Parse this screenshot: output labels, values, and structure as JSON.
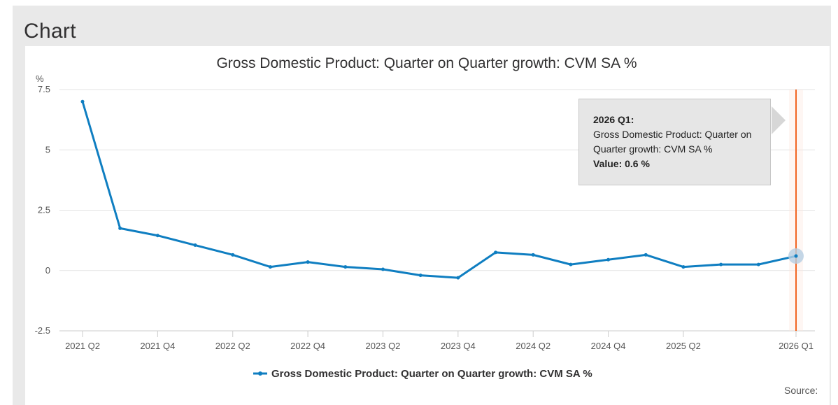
{
  "panel": {
    "title": "Chart"
  },
  "chart_data": {
    "type": "line",
    "title": "Gross Domestic Product: Quarter on Quarter growth: CVM SA %",
    "ylabel": "%",
    "ylim": [
      -2.5,
      7.5
    ],
    "yticks": [
      "7.5",
      "5",
      "2.5",
      "0",
      "-2.5"
    ],
    "ytick_values": [
      7.5,
      5,
      2.5,
      0,
      -2.5
    ],
    "x": [
      "2021 Q2",
      "2021 Q3",
      "2021 Q4",
      "2022 Q1",
      "2022 Q2",
      "2022 Q3",
      "2022 Q4",
      "2023 Q1",
      "2023 Q2",
      "2023 Q3",
      "2023 Q4",
      "2024 Q1",
      "2024 Q2",
      "2024 Q3",
      "2024 Q4",
      "2025 Q1",
      "2025 Q2",
      "2025 Q3",
      "2025 Q4",
      "2026 Q1"
    ],
    "xtick_labels": [
      "2021 Q2",
      "2021 Q4",
      "2022 Q2",
      "2022 Q4",
      "2023 Q2",
      "2023 Q4",
      "2024 Q2",
      "2024 Q4",
      "2025 Q2",
      "2026 Q1"
    ],
    "series": [
      {
        "name": "Gross Domestic Product: Quarter on Quarter growth: CVM SA %",
        "color": "#0f7ec1",
        "values": [
          7.0,
          1.75,
          1.45,
          1.05,
          0.65,
          0.15,
          0.35,
          0.15,
          0.05,
          -0.2,
          -0.3,
          0.75,
          0.65,
          0.25,
          0.45,
          0.65,
          0.15,
          0.25,
          0.25,
          0.6
        ]
      }
    ],
    "grid": true,
    "legend": "bottom-center",
    "highlight": {
      "category": "2026 Q1",
      "line_color": "#f26522"
    },
    "tooltip": {
      "heading": "2026 Q1:",
      "series_name": "Gross Domestic Product: Quarter on Quarter growth: CVM SA %",
      "value_text": "Value: 0.6 %"
    }
  },
  "footer": {
    "source": "Source:"
  }
}
